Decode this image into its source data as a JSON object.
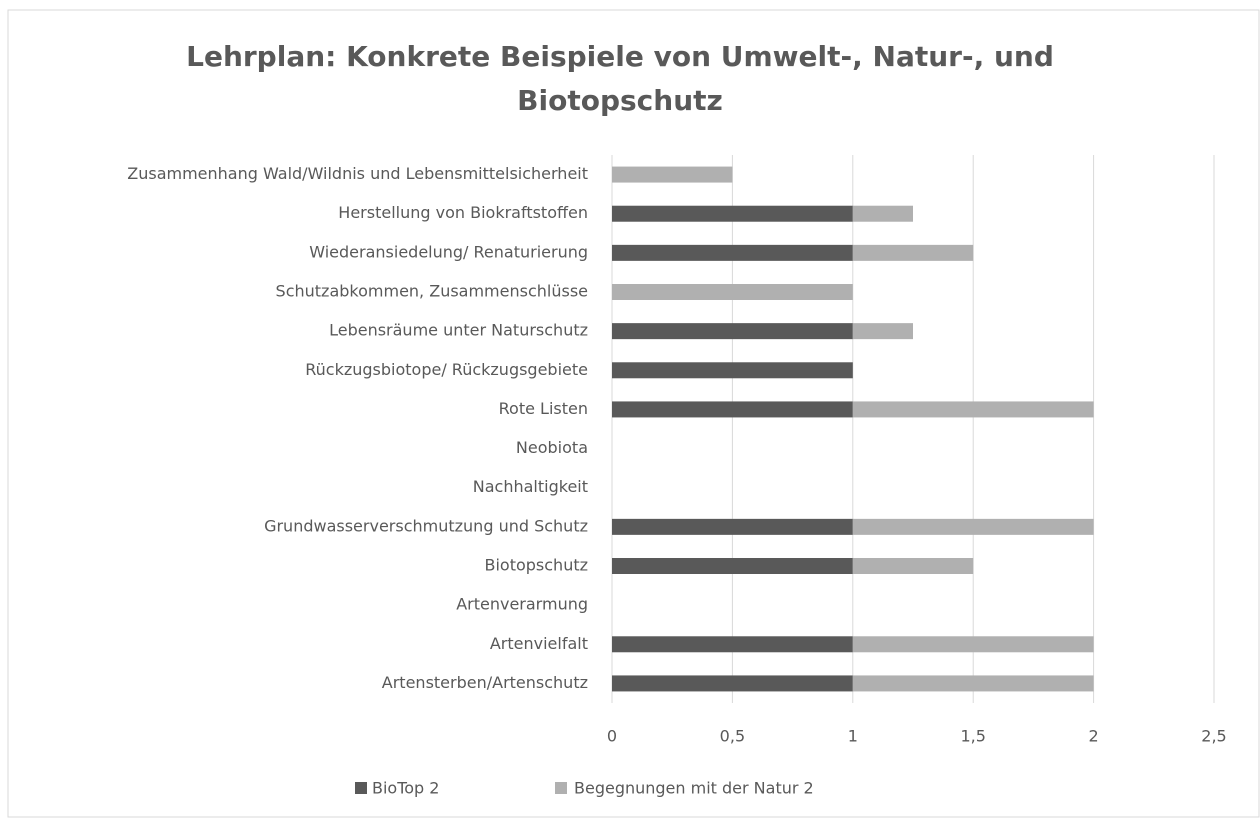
{
  "chart_data": {
    "type": "stacked-bar-horizontal",
    "title": "Lehrplan: Konkrete Beispiele von Umwelt-, Natur-, und Biotopschutz",
    "categories": [
      "Artensterben/Artenschutz",
      "Artenvielfalt",
      "Artenverarmung",
      "Biotopschutz",
      "Grundwasserverschmutzung und Schutz",
      "Nachhaltigkeit",
      "Neobiota",
      "Rote Listen",
      "Rückzugsbiotope/ Rückzugsgebiete",
      "Lebensräume unter Naturschutz",
      "Schutzabkommen, Zusammenschlüsse",
      "Wiederansiedelung/ Renaturierung",
      "Herstellung von Biokraftstoffen",
      "Zusammenhang Wald/Wildnis und Lebensmittelsicherheit"
    ],
    "series": [
      {
        "name": "BioTop 2",
        "color": "#595959",
        "values": [
          1,
          1,
          0,
          1,
          1,
          0,
          0,
          1,
          1,
          1,
          0,
          1,
          1,
          0
        ]
      },
      {
        "name": "Begegnungen mit der Natur 2",
        "color": "#b0b0b0",
        "values": [
          1,
          1,
          0,
          0.5,
          1,
          0,
          0,
          1,
          0,
          0.25,
          1,
          0.5,
          0.25,
          0.5
        ]
      }
    ],
    "xlim": [
      0,
      2.5
    ],
    "xticks": [
      0,
      {
        "value": 0.5,
        "label": "0,5"
      },
      1,
      {
        "value": 1.5,
        "label": "1,5"
      },
      2,
      {
        "value": 2.5,
        "label": "2,5"
      }
    ],
    "grid": true,
    "legend": "bottom"
  }
}
